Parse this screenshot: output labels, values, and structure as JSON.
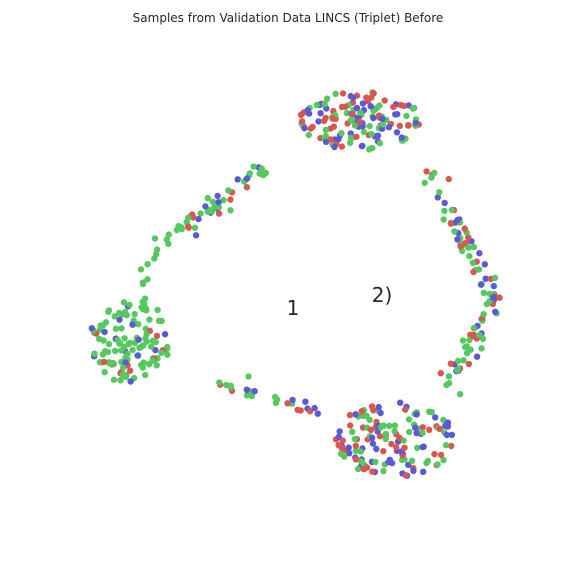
{
  "chart_data": {
    "type": "scatter",
    "title": "Samples from Validation Data LINCS (Triplet) Before",
    "xlabel": "",
    "ylabel": "",
    "grid": false,
    "legend": "none",
    "axes_visible": false,
    "annotations": [
      "1",
      "2)"
    ],
    "series": [
      {
        "color": "#55c95f",
        "clusters": [
          {
            "shape": "arc",
            "from": [
              160,
              245
            ],
            "to": [
              265,
              168
            ],
            "count": 34,
            "spread": 5
          },
          {
            "shape": "blob",
            "center": [
              130,
              340
            ],
            "rx": 40,
            "ry": 45,
            "count": 95
          },
          {
            "shape": "arc",
            "from": [
              430,
              175
            ],
            "to": [
              495,
              300
            ],
            "count": 30,
            "spread": 6
          },
          {
            "shape": "arc",
            "from": [
              495,
              300
            ],
            "to": [
              445,
              395
            ],
            "count": 22,
            "spread": 6
          },
          {
            "shape": "blob",
            "center": [
              360,
              120
            ],
            "rx": 60,
            "ry": 30,
            "count": 55
          },
          {
            "shape": "blob",
            "center": [
              395,
              440
            ],
            "rx": 60,
            "ry": 38,
            "count": 50
          },
          {
            "shape": "arc",
            "from": [
              210,
              382
            ],
            "to": [
              320,
              412
            ],
            "count": 12,
            "spread": 4
          },
          {
            "shape": "arc",
            "from": [
              140,
              285
            ],
            "to": [
              160,
              245
            ],
            "count": 8,
            "spread": 4
          }
        ]
      },
      {
        "color": "#d95750",
        "clusters": [
          {
            "shape": "arc",
            "from": [
              160,
              245
            ],
            "to": [
              265,
              168
            ],
            "count": 8,
            "spread": 5
          },
          {
            "shape": "blob",
            "center": [
              130,
              340
            ],
            "rx": 40,
            "ry": 45,
            "count": 12
          },
          {
            "shape": "arc",
            "from": [
              430,
              175
            ],
            "to": [
              495,
              300
            ],
            "count": 14,
            "spread": 6
          },
          {
            "shape": "arc",
            "from": [
              495,
              300
            ],
            "to": [
              445,
              395
            ],
            "count": 12,
            "spread": 6
          },
          {
            "shape": "blob",
            "center": [
              360,
              120
            ],
            "rx": 60,
            "ry": 30,
            "count": 45
          },
          {
            "shape": "blob",
            "center": [
              395,
              440
            ],
            "rx": 60,
            "ry": 38,
            "count": 45
          },
          {
            "shape": "arc",
            "from": [
              210,
              382
            ],
            "to": [
              320,
              412
            ],
            "count": 6,
            "spread": 4
          }
        ]
      },
      {
        "color": "#5a59d8",
        "clusters": [
          {
            "shape": "arc",
            "from": [
              160,
              245
            ],
            "to": [
              265,
              168
            ],
            "count": 10,
            "spread": 5
          },
          {
            "shape": "blob",
            "center": [
              130,
              340
            ],
            "rx": 40,
            "ry": 45,
            "count": 14
          },
          {
            "shape": "arc",
            "from": [
              430,
              175
            ],
            "to": [
              495,
              300
            ],
            "count": 14,
            "spread": 6
          },
          {
            "shape": "arc",
            "from": [
              495,
              300
            ],
            "to": [
              445,
              395
            ],
            "count": 10,
            "spread": 6
          },
          {
            "shape": "blob",
            "center": [
              360,
              120
            ],
            "rx": 60,
            "ry": 30,
            "count": 45
          },
          {
            "shape": "blob",
            "center": [
              395,
              440
            ],
            "rx": 60,
            "ry": 38,
            "count": 45
          },
          {
            "shape": "arc",
            "from": [
              210,
              382
            ],
            "to": [
              320,
              412
            ],
            "count": 8,
            "spread": 4
          }
        ]
      }
    ]
  }
}
